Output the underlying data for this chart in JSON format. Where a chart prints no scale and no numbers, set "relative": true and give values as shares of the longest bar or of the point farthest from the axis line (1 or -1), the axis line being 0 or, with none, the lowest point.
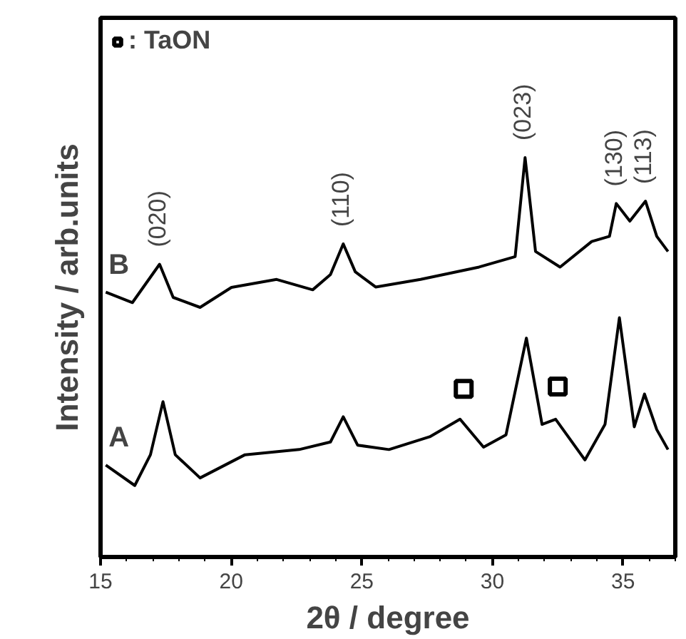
{
  "chart_data": {
    "type": "line",
    "relative": true,
    "xlabel": "2θ / degree",
    "ylabel": "Intensity / arb.units",
    "xlim": [
      15,
      37
    ],
    "xticks": [
      15,
      20,
      25,
      30,
      35
    ],
    "grid": false,
    "legend": "top left",
    "line_style": "solid",
    "series": [
      {
        "name": "A",
        "color": "#000000",
        "x": [
          15.2,
          16.31,
          16.91,
          17.39,
          17.86,
          18.81,
          20.53,
          22.6,
          23.8,
          24.29,
          24.84,
          26.04,
          27.6,
          28.76,
          29.66,
          30.52,
          31.3,
          31.9,
          32.42,
          33.54,
          34.31,
          34.86,
          35.43,
          35.82,
          36.29,
          36.72
        ],
        "values": [
          0.23,
          0.179,
          0.256,
          0.389,
          0.256,
          0.198,
          0.256,
          0.269,
          0.288,
          0.351,
          0.28,
          0.269,
          0.301,
          0.345,
          0.275,
          0.306,
          0.548,
          0.332,
          0.345,
          0.243,
          0.332,
          0.599,
          0.326,
          0.408,
          0.319,
          0.269
        ]
      },
      {
        "name": "B",
        "color": "#000000",
        "x": [
          15.2,
          16.22,
          17.26,
          17.78,
          18.81,
          20.01,
          21.74,
          23.12,
          23.8,
          24.29,
          24.75,
          25.53,
          27.25,
          29.49,
          30.87,
          31.25,
          31.65,
          32.59,
          33.8,
          34.48,
          34.74,
          35.26,
          35.86,
          36.29,
          36.72
        ],
        "values": [
          0.663,
          0.637,
          0.733,
          0.65,
          0.625,
          0.675,
          0.695,
          0.669,
          0.707,
          0.784,
          0.714,
          0.676,
          0.695,
          0.726,
          0.752,
          1.0,
          0.765,
          0.726,
          0.79,
          0.803,
          0.885,
          0.841,
          0.891,
          0.803,
          0.765
        ]
      },
      {
        "name": ": TaON",
        "type": "scatter",
        "marker": "square",
        "color": "#000000",
        "x": [
          28.9,
          32.5
        ],
        "values": [
          0.421,
          0.427
        ]
      }
    ],
    "annotations": [
      {
        "text": "(020)",
        "x": 17.26,
        "y": 0.733
      },
      {
        "text": "(110)",
        "x": 24.29,
        "y": 0.784
      },
      {
        "text": "(023)",
        "x": 31.25,
        "y": 1.0
      },
      {
        "text": "(130)",
        "x": 34.74,
        "y": 0.885
      },
      {
        "text": "(113)",
        "x": 35.86,
        "y": 0.891
      }
    ]
  }
}
